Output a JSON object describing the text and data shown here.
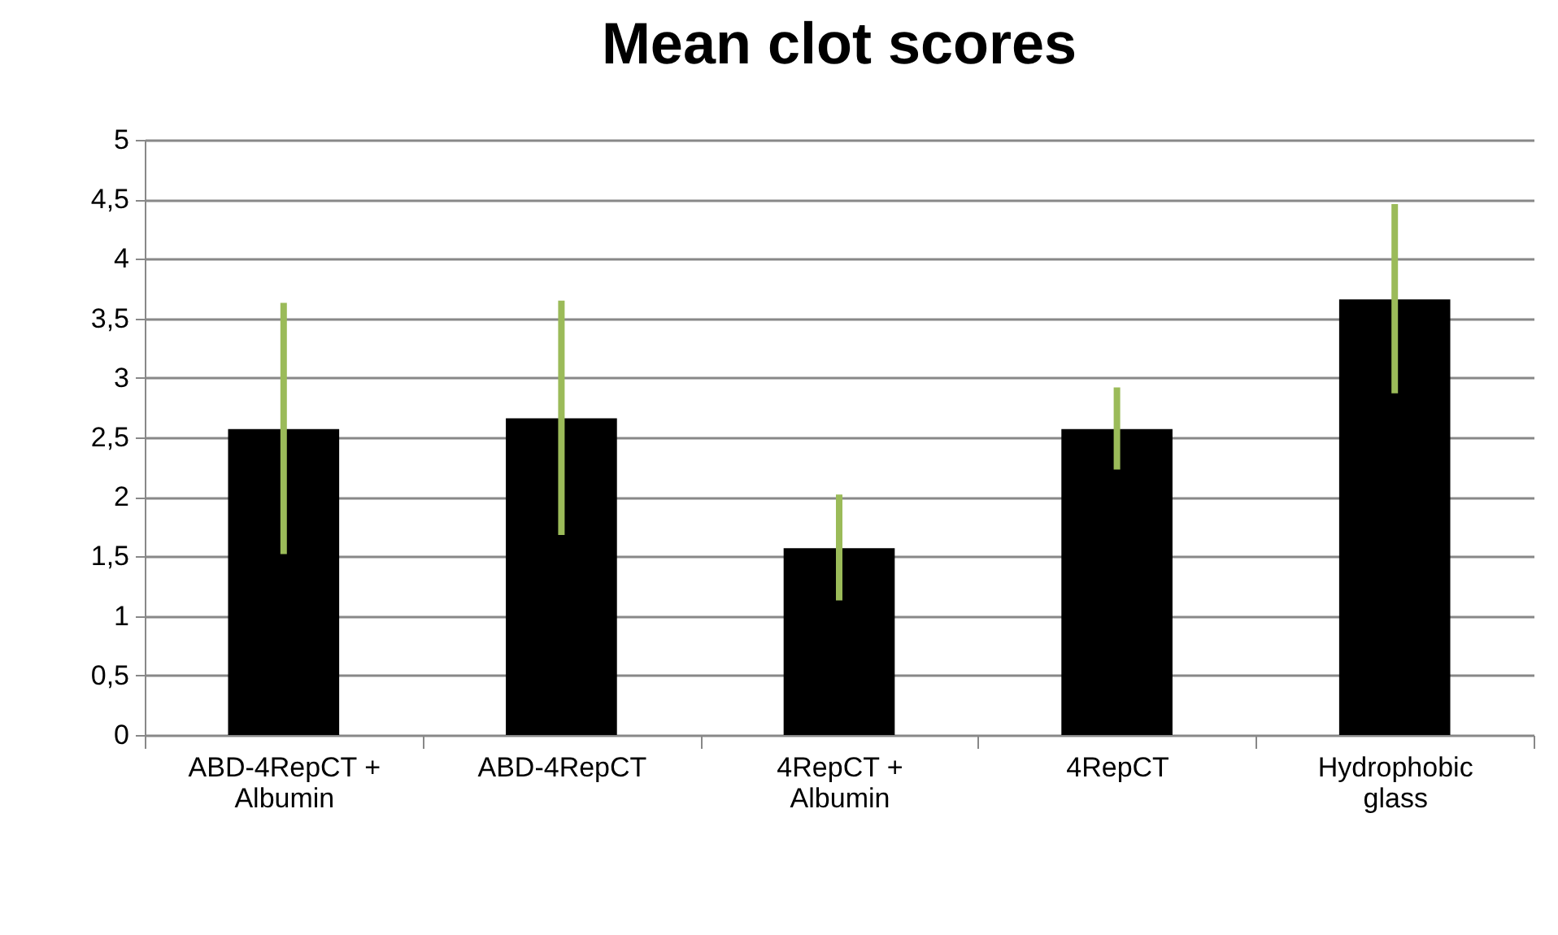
{
  "chart_data": {
    "type": "bar",
    "title": "Mean clot scores",
    "categories": [
      "ABD-4RepCT + Albumin",
      "ABD-4RepCT",
      "4RepCT + Albumin",
      "4RepCT",
      "Hydrophobic glass"
    ],
    "values": [
      2.57,
      2.66,
      1.57,
      2.57,
      3.66
    ],
    "color": "#000000",
    "errors": [
      [
        1.52,
        3.63
      ],
      [
        1.68,
        3.65
      ],
      [
        1.13,
        2.02
      ],
      [
        2.23,
        2.92
      ],
      [
        2.87,
        4.46
      ]
    ],
    "ylim": [
      0,
      5
    ],
    "yticks": [
      0,
      {
        "value": 0.5,
        "label": "0,5"
      },
      1,
      {
        "value": 1.5,
        "label": "1,5"
      },
      2,
      {
        "value": 2.5,
        "label": "2,5"
      },
      3,
      {
        "value": 3.5,
        "label": "3,5"
      },
      4,
      {
        "value": 4.5,
        "label": "4,5"
      },
      5
    ],
    "grid": "y"
  }
}
